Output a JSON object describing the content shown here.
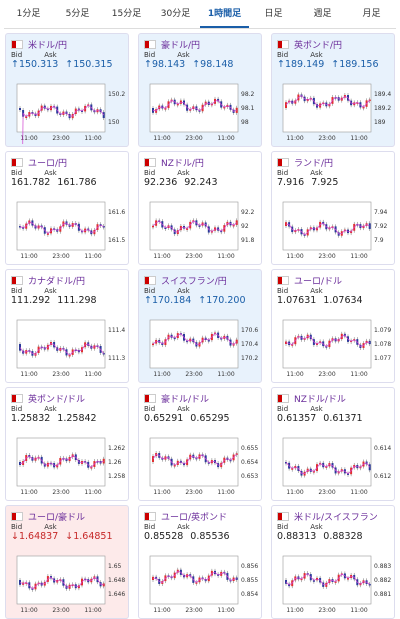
{
  "tabs": {
    "items": [
      "1分足",
      "5分足",
      "15分足",
      "30分足",
      "1時間足",
      "日足",
      "週足",
      "月足"
    ],
    "selected": 4
  },
  "cards": [
    {
      "name": "米ドル/円",
      "state": "up",
      "bid_label": "Bid",
      "ask_label": "Ask",
      "bid": "↑150.313",
      "ask": "↑150.315",
      "y_labels": [
        "150.2",
        "150"
      ],
      "x_labels": [
        "11:00",
        "23:00",
        "11:00"
      ]
    },
    {
      "name": "豪ドル/円",
      "state": "up",
      "bid_label": "Bid",
      "ask_label": "Ask",
      "bid": "↑98.143",
      "ask": "↑98.148",
      "y_labels": [
        "98.2",
        "98.1",
        "98"
      ],
      "x_labels": [
        "11:00",
        "23:00",
        "11:00"
      ]
    },
    {
      "name": "英ポンド/円",
      "state": "up",
      "bid_label": "Bid",
      "ask_label": "Ask",
      "bid": "↑189.149",
      "ask": "↑189.156",
      "y_labels": [
        "189.4",
        "189.2",
        "189"
      ],
      "x_labels": [
        "11:00",
        "23:00",
        "11:00"
      ]
    },
    {
      "name": "ユーロ/円",
      "state": "none",
      "bid_label": "Bid",
      "ask_label": "Ask",
      "bid": "161.782",
      "ask": "161.786",
      "y_labels": [
        "161.6",
        "161.5"
      ],
      "x_labels": [
        "11:00",
        "23:00",
        "11:00"
      ]
    },
    {
      "name": "NZドル/円",
      "state": "none",
      "bid_label": "Bid",
      "ask_label": "Ask",
      "bid": "92.236",
      "ask": "92.243",
      "y_labels": [
        "92.2",
        "92",
        "91.8"
      ],
      "x_labels": [
        "11:00",
        "23:00",
        "11:00"
      ]
    },
    {
      "name": "ランド/円",
      "state": "none",
      "bid_label": "Bid",
      "ask_label": "Ask",
      "bid": "7.916",
      "ask": "7.925",
      "y_labels": [
        "7.94",
        "7.92",
        "7.9"
      ],
      "x_labels": [
        "11:00",
        "23:00",
        "11:00"
      ]
    },
    {
      "name": "カナダドル/円",
      "state": "none",
      "bid_label": "Bid",
      "ask_label": "Ask",
      "bid": "111.292",
      "ask": "111.298",
      "y_labels": [
        "111.4",
        "111.3"
      ],
      "x_labels": [
        "11:00",
        "23:00",
        "11:00"
      ]
    },
    {
      "name": "スイスフラン/円",
      "state": "up",
      "bid_label": "Bid",
      "ask_label": "Ask",
      "bid": "↑170.184",
      "ask": "↑170.200",
      "y_labels": [
        "170.6",
        "170.4",
        "170.2"
      ],
      "x_labels": [
        "11:00",
        "23:00",
        "11:00"
      ]
    },
    {
      "name": "ユーロ/ドル",
      "state": "none",
      "bid_label": "Bid",
      "ask_label": "Ask",
      "bid": "1.07631",
      "ask": "1.07634",
      "y_labels": [
        "1.079",
        "1.078",
        "1.077"
      ],
      "x_labels": [
        "11:00",
        "23:00",
        "11:00"
      ]
    },
    {
      "name": "英ポンド/ドル",
      "state": "none",
      "bid_label": "Bid",
      "ask_label": "Ask",
      "bid": "1.25832",
      "ask": "1.25842",
      "y_labels": [
        "1.262",
        "1.26",
        "1.258"
      ],
      "x_labels": [
        "11:00",
        "23:00",
        "11:00"
      ]
    },
    {
      "name": "豪ドル/ドル",
      "state": "none",
      "bid_label": "Bid",
      "ask_label": "Ask",
      "bid": "0.65291",
      "ask": "0.65295",
      "y_labels": [
        "0.655",
        "0.654",
        "0.653"
      ],
      "x_labels": [
        "11:00",
        "23:00",
        "11:00"
      ]
    },
    {
      "name": "NZドル/ドル",
      "state": "none",
      "bid_label": "Bid",
      "ask_label": "Ask",
      "bid": "0.61357",
      "ask": "0.61371",
      "y_labels": [
        "0.614",
        "0.612"
      ],
      "x_labels": [
        "11:00",
        "23:00",
        "11:00"
      ]
    },
    {
      "name": "ユーロ/豪ドル",
      "state": "down",
      "bid_label": "Bid",
      "ask_label": "Ask",
      "bid": "↓1.64837",
      "ask": "↓1.64851",
      "y_labels": [
        "1.65",
        "1.648",
        "1.646"
      ],
      "x_labels": [
        "11:00",
        "23:00",
        "11:00"
      ]
    },
    {
      "name": "ユーロ/英ポンド",
      "state": "none",
      "bid_label": "Bid",
      "ask_label": "Ask",
      "bid": "0.85528",
      "ask": "0.85536",
      "y_labels": [
        "0.856",
        "0.855",
        "0.854"
      ],
      "x_labels": [
        "11:00",
        "23:00",
        "11:00"
      ]
    },
    {
      "name": "米ドル/スイスフラン",
      "state": "none",
      "bid_label": "Bid",
      "ask_label": "Ask",
      "bid": "0.88313",
      "ask": "0.88328",
      "y_labels": [
        "0.883",
        "0.882",
        "0.881"
      ],
      "x_labels": [
        "11:00",
        "23:00",
        "11:00"
      ]
    }
  ]
}
